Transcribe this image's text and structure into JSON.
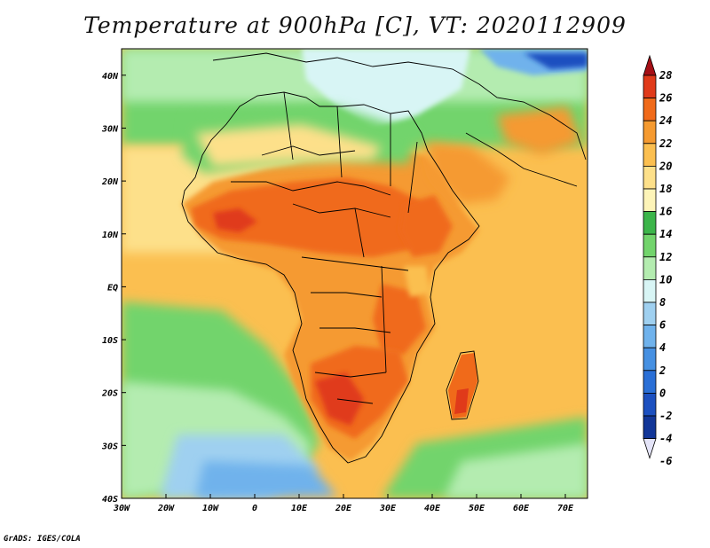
{
  "title": "Temperature at 900hPa [C], VT: 2020112909",
  "credit": "GrADS: IGES/COLA",
  "map": {
    "projection": "latlon",
    "lon_range": [
      -30,
      75
    ],
    "lat_range": [
      -40,
      45
    ],
    "lon_ticks": [
      "30W",
      "20W",
      "10W",
      "0",
      "10E",
      "20E",
      "30E",
      "40E",
      "50E",
      "60E",
      "70E"
    ],
    "lat_ticks": [
      "40N",
      "30N",
      "20N",
      "10N",
      "EQ",
      "10S",
      "20S",
      "30S",
      "40S"
    ]
  },
  "colorbar": {
    "labels": [
      "28",
      "26",
      "24",
      "22",
      "20",
      "18",
      "16",
      "14",
      "12",
      "10",
      "8",
      "6",
      "4",
      "2",
      "0",
      "-2",
      "-4",
      "-6"
    ],
    "colors": [
      "#a50f15",
      "#e03a1a",
      "#f06a1a",
      "#f59a30",
      "#fbbf50",
      "#fde08a",
      "#fdf4b8",
      "#3cb54a",
      "#72d46c",
      "#b4ecb0",
      "#d8f5f5",
      "#9fd0f0",
      "#6fb2ec",
      "#4690e2",
      "#2a6fd6",
      "#1c50c0",
      "#123698",
      "#0a1d70"
    ],
    "extend": "both"
  }
}
